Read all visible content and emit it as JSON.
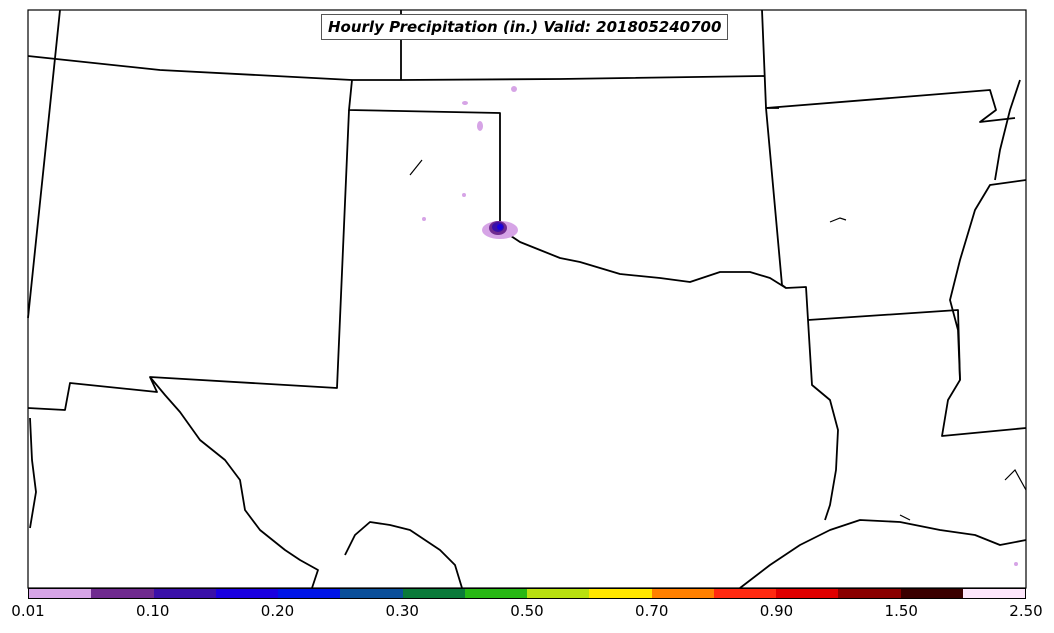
{
  "title": "Hourly Precipitation (in.) Valid: 201805240700",
  "colorbar": {
    "colors": [
      "#d6a4e6",
      "#6f2a8f",
      "#3a10a8",
      "#1a00e0",
      "#0015e6",
      "#0a4f9a",
      "#0a7a3a",
      "#28b814",
      "#b8e010",
      "#ffe600",
      "#ff8000",
      "#ff2a10",
      "#e00000",
      "#8a0000",
      "#3a0000",
      "#fde6fb"
    ],
    "tick_labels": [
      "0.01",
      "0.10",
      "0.20",
      "0.30",
      "0.50",
      "0.70",
      "0.90",
      "1.50",
      "2.50"
    ]
  },
  "precip_colors": {
    "light": "#d6a4e6",
    "medium": "#6f2a8f",
    "heavy": "#3a10a8",
    "core": "#1a00e0"
  }
}
